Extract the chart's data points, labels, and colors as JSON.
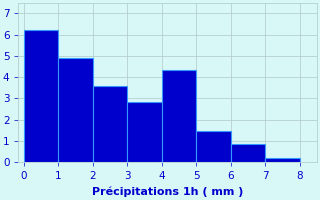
{
  "categories": [
    0,
    1,
    2,
    3,
    4,
    5,
    6,
    7
  ],
  "values": [
    6.2,
    4.9,
    3.6,
    2.85,
    4.35,
    1.45,
    0.85,
    0.2
  ],
  "bar_color": "#0000cc",
  "bar_edge_color": "#3399ff",
  "background_color": "#d8f8f8",
  "xlabel": "Précipitations 1h ( mm )",
  "xlabel_color": "#0000cc",
  "tick_color": "#0000cc",
  "grid_color": "#b0c8c8",
  "ylim": [
    0,
    7.5
  ],
  "xlim": [
    -0.15,
    8.5
  ],
  "yticks": [
    0,
    1,
    2,
    3,
    4,
    5,
    6,
    7
  ],
  "xticks": [
    0,
    1,
    2,
    3,
    4,
    5,
    6,
    7,
    8
  ],
  "bar_width": 1.0,
  "xlabel_fontsize": 8,
  "tick_fontsize": 7.5
}
